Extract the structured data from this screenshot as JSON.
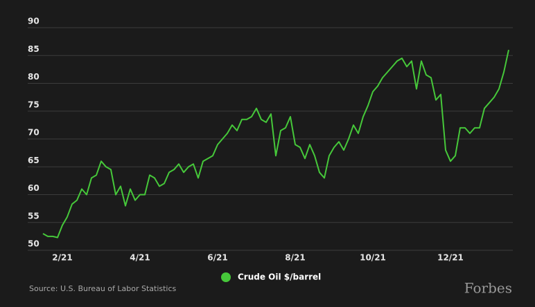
{
  "chart_data": {
    "type": "line",
    "series": [
      {
        "name": "Crude Oil $/barrel",
        "color": "#46c83a",
        "values": [
          53,
          52.5,
          52.5,
          52.3,
          54.5,
          56,
          58.3,
          59,
          61,
          60,
          63,
          63.5,
          66,
          65,
          64.5,
          60,
          61.5,
          58,
          61,
          59,
          60,
          60,
          63.5,
          63,
          61.5,
          62,
          64,
          64.5,
          65.5,
          64,
          65,
          65.5,
          63,
          66,
          66.5,
          67,
          69,
          70,
          71,
          72.5,
          71.5,
          73.5,
          73.5,
          74,
          75.5,
          73.5,
          73,
          74.5,
          67,
          71.5,
          72,
          74,
          69,
          68.5,
          66.5,
          69,
          67,
          64,
          63,
          67,
          68.5,
          69.5,
          68,
          70,
          72.5,
          71,
          74,
          76,
          78.5,
          79.5,
          81,
          82,
          83,
          84,
          84.5,
          83,
          84,
          79,
          84,
          81.5,
          81,
          77,
          78,
          68,
          66,
          67,
          72,
          72,
          71,
          72,
          72,
          75.5,
          76.5,
          77.5,
          79,
          82,
          86
        ]
      }
    ],
    "categories": [
      null,
      null,
      null,
      null,
      "2/21",
      null,
      null,
      null,
      null,
      null,
      null,
      null,
      null,
      null,
      null,
      null,
      null,
      null,
      null,
      null,
      "4/21",
      null,
      null,
      null,
      null,
      null,
      null,
      null,
      null,
      null,
      null,
      null,
      null,
      null,
      null,
      null,
      "6/21",
      null,
      null,
      null,
      null,
      null,
      null,
      null,
      null,
      null,
      null,
      null,
      null,
      null,
      null,
      null,
      "8/21",
      null,
      null,
      null,
      null,
      null,
      null,
      null,
      null,
      null,
      null,
      null,
      null,
      null,
      null,
      null,
      "10/21",
      null,
      null,
      null,
      null,
      null,
      null,
      null,
      null,
      null,
      null,
      null,
      null,
      null,
      null,
      null,
      "12/21",
      null,
      null,
      null,
      null,
      null,
      null,
      null,
      null,
      null,
      null,
      null,
      null
    ],
    "ylim": [
      50,
      90
    ],
    "yticks": [
      50,
      55,
      60,
      65,
      70,
      75,
      80,
      85,
      90
    ],
    "grid": true,
    "source": "Source: U.S. Bureau of Labor Statistics",
    "brand": "Forbes"
  }
}
